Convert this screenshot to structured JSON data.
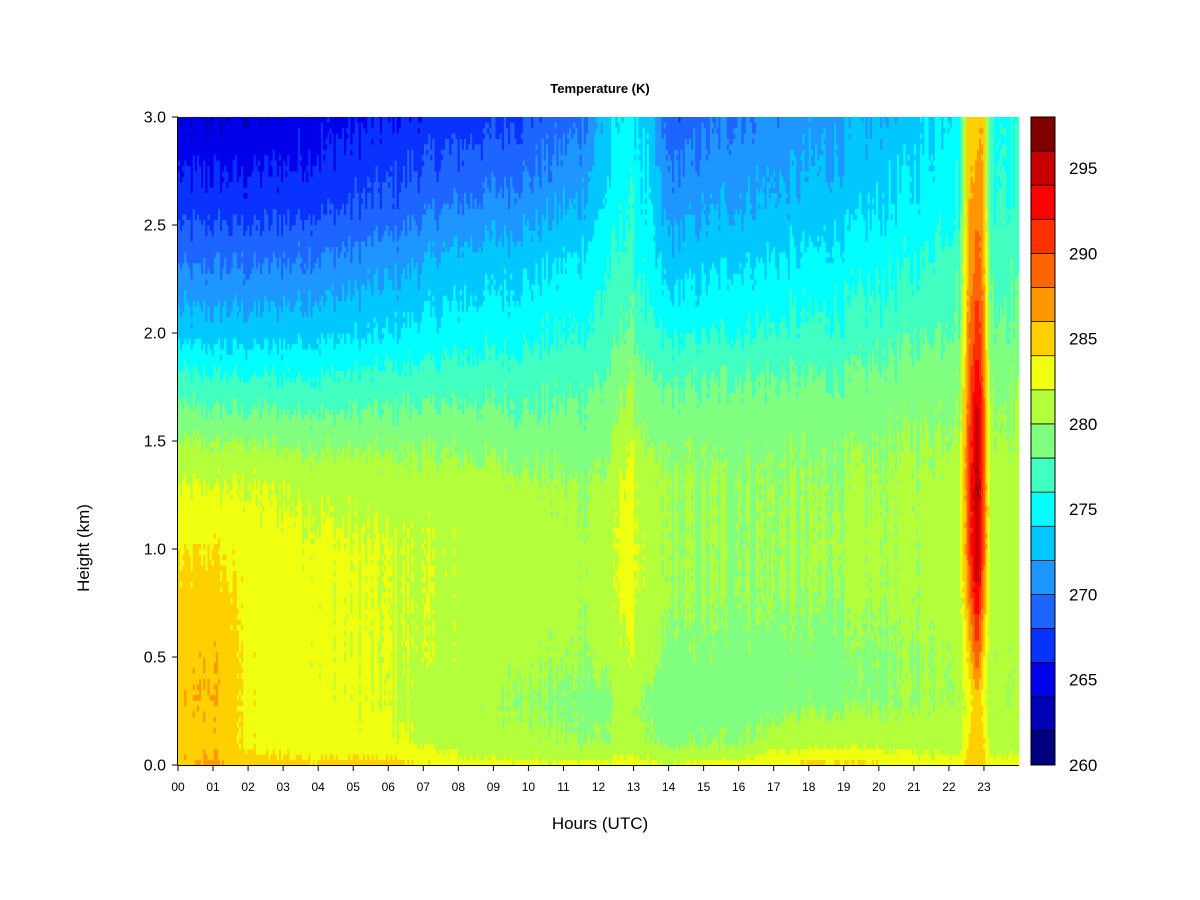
{
  "chart_data": {
    "type": "heatmap",
    "title": "Temperature (K)",
    "xlabel": "Hours (UTC)",
    "ylabel": "Height (km)",
    "x_ticks": [
      "00",
      "01",
      "02",
      "03",
      "04",
      "05",
      "06",
      "07",
      "08",
      "09",
      "10",
      "11",
      "12",
      "13",
      "14",
      "15",
      "16",
      "17",
      "18",
      "19",
      "20",
      "21",
      "22",
      "23"
    ],
    "y_ticks": [
      "0.0",
      "0.5",
      "1.0",
      "1.5",
      "2.0",
      "2.5",
      "3.0"
    ],
    "xlim": [
      0,
      24
    ],
    "ylim": [
      0,
      3.0
    ],
    "colorbar": {
      "range": [
        260,
        298
      ],
      "step": 2,
      "tick_labels": [
        "260",
        "265",
        "270",
        "275",
        "280",
        "285",
        "290",
        "295"
      ],
      "colors": [
        "#00007f",
        "#0000b5",
        "#0000eb",
        "#0a32ff",
        "#1e64ff",
        "#1e96ff",
        "#00c8ff",
        "#00ffff",
        "#40ffc0",
        "#80ff80",
        "#b4ff3c",
        "#f0ff10",
        "#ffd000",
        "#ff9800",
        "#ff6400",
        "#ff3000",
        "#ff0000",
        "#c80000",
        "#800000"
      ]
    },
    "field_profiles": {
      "heights_km": [
        0.0,
        0.1,
        0.3,
        0.5,
        0.8,
        1.0,
        1.3,
        1.5,
        1.8,
        2.0,
        2.3,
        2.6,
        3.0
      ],
      "columns": [
        {
          "hour": 0.0,
          "temps": [
            285.5,
            285,
            285.5,
            285.2,
            284.5,
            283.5,
            282,
            280,
            276.5,
            273,
            270,
            267,
            264
          ]
        },
        {
          "hour": 1.0,
          "temps": [
            286.5,
            285.5,
            286,
            285.8,
            285,
            284,
            282,
            280,
            276,
            273,
            270,
            267,
            264
          ]
        },
        {
          "hour": 2.0,
          "temps": [
            285,
            283.5,
            283.5,
            283.5,
            283.3,
            283,
            282,
            280,
            276,
            273,
            270,
            267,
            264
          ]
        },
        {
          "hour": 4.0,
          "temps": [
            284.5,
            283,
            282.5,
            282.5,
            282.5,
            282.5,
            281.5,
            279.5,
            276,
            273.5,
            270.5,
            267.5,
            265
          ]
        },
        {
          "hour": 6.0,
          "temps": [
            285,
            282.5,
            282,
            282,
            282,
            282,
            281,
            279.5,
            276.5,
            274,
            271.5,
            268.5,
            266
          ]
        },
        {
          "hour": 8.0,
          "temps": [
            283,
            281,
            280.5,
            281.5,
            281.5,
            281.5,
            281,
            279.5,
            277,
            275,
            273,
            270,
            267
          ]
        },
        {
          "hour": 10.0,
          "temps": [
            282.5,
            280.5,
            280,
            280.5,
            281,
            281,
            280.5,
            279,
            277,
            275.5,
            273.5,
            271,
            268
          ]
        },
        {
          "hour": 11.5,
          "temps": [
            282.5,
            280,
            279.5,
            280,
            280.5,
            280.5,
            280,
            279,
            277.5,
            276,
            274.5,
            272,
            269.5
          ]
        },
        {
          "hour": 12.3,
          "temps": [
            282.5,
            280,
            279.5,
            280.5,
            281,
            281,
            280.5,
            279.5,
            278,
            277,
            276,
            274.5,
            273
          ]
        },
        {
          "hour": 12.85,
          "temps": [
            283,
            281,
            281,
            282,
            283,
            283.5,
            283,
            282,
            280,
            278.5,
            277,
            276,
            275
          ]
        },
        {
          "hour": 13.4,
          "temps": [
            282.5,
            280,
            279.5,
            280.5,
            281,
            281,
            280.5,
            279.5,
            278,
            276.5,
            275,
            274,
            273
          ]
        },
        {
          "hour": 14.0,
          "temps": [
            282,
            279.5,
            279,
            279.5,
            280,
            280,
            280,
            279.5,
            277.5,
            275.5,
            273,
            271,
            268.5
          ]
        },
        {
          "hour": 16.0,
          "temps": [
            283,
            280,
            279,
            279.5,
            280,
            280,
            280,
            279.5,
            278,
            276,
            274,
            272,
            270
          ]
        },
        {
          "hour": 18.0,
          "temps": [
            284.5,
            281.5,
            279.5,
            279.5,
            280,
            280,
            280,
            279.5,
            278,
            276.5,
            274.5,
            272.5,
            271
          ]
        },
        {
          "hour": 19.0,
          "temps": [
            284.5,
            281.5,
            279.5,
            279.5,
            280,
            280.5,
            280,
            279.5,
            278,
            276.5,
            275,
            273,
            271.5
          ]
        },
        {
          "hour": 21.0,
          "temps": [
            283.5,
            281,
            280,
            280,
            280.5,
            280.5,
            280.5,
            280,
            279,
            277.5,
            276,
            274.5,
            273
          ]
        },
        {
          "hour": 22.3,
          "temps": [
            283,
            281,
            280.5,
            280.5,
            281,
            281,
            281,
            280.5,
            279.5,
            278.5,
            277.5,
            276,
            275
          ]
        },
        {
          "hour": 22.55,
          "temps": [
            285,
            284,
            283,
            284,
            287,
            289,
            289,
            289,
            288,
            287,
            286,
            285.5,
            285
          ]
        },
        {
          "hour": 22.8,
          "temps": [
            286,
            286,
            285,
            290,
            295,
            297,
            297.5,
            297,
            294,
            292,
            290,
            288,
            286
          ]
        },
        {
          "hour": 23.0,
          "temps": [
            285,
            284,
            283,
            284,
            287,
            289,
            289,
            289,
            288,
            287,
            286,
            285.5,
            285
          ]
        },
        {
          "hour": 23.2,
          "temps": [
            283,
            281,
            280.5,
            280.5,
            281,
            281,
            281,
            280.5,
            279.5,
            278.5,
            277.5,
            276.5,
            276
          ]
        },
        {
          "hour": 23.8,
          "temps": [
            283,
            281,
            280.5,
            280.5,
            281,
            281,
            281,
            280.5,
            279.5,
            278.5,
            277.5,
            276.5,
            276
          ]
        }
      ]
    },
    "grid": false,
    "legend": "colorbar-right"
  }
}
